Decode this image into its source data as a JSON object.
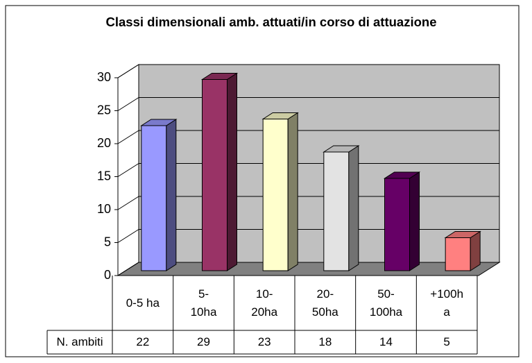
{
  "chart_data": {
    "type": "bar",
    "title": "Classi dimensionali amb. attuati/in corso di attuazione",
    "categories": [
      "0-5 ha",
      "5-10ha",
      "10-20ha",
      "20-50ha",
      "50-100ha",
      "+100ha"
    ],
    "series": [
      {
        "name": "N. ambiti",
        "values": [
          22,
          29,
          23,
          18,
          14,
          5
        ],
        "colors": [
          "#9999ff",
          "#993366",
          "#ffffcc",
          "#e3e3e3",
          "#660066",
          "#ff8080"
        ]
      }
    ],
    "ylim": [
      0,
      30
    ],
    "yticks": [
      0,
      5,
      10,
      15,
      20,
      25,
      30
    ],
    "grid": true
  }
}
